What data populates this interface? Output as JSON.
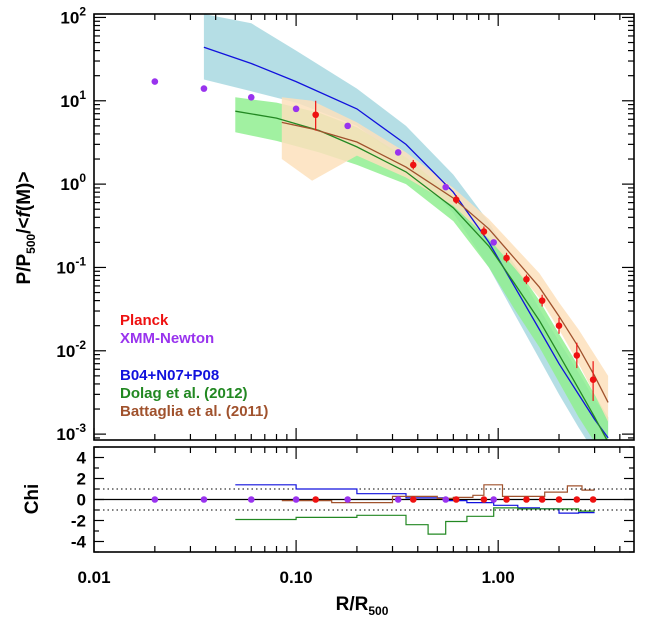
{
  "chart_data": [
    {
      "type": "line",
      "panel": "main",
      "xscale": "log",
      "yscale": "log",
      "xlim": [
        0.01,
        4.7
      ],
      "ylim": [
        0.00085,
        110
      ],
      "xlabel": "",
      "ylabel": "P/P500/<f(M)>",
      "ylabel_parts": {
        "base": "P/P",
        "sub": "500",
        "rest": "/<",
        "italic": "f",
        "tail": "(M)>"
      },
      "yticks": [
        {
          "value": 100,
          "base": "10",
          "exp": "2"
        },
        {
          "value": 10,
          "base": "10",
          "exp": "1"
        },
        {
          "value": 1,
          "base": "10",
          "exp": "0"
        },
        {
          "value": 0.1,
          "base": "10",
          "exp": "-1"
        },
        {
          "value": 0.01,
          "base": "10",
          "exp": "-2"
        },
        {
          "value": 0.001,
          "base": "10",
          "exp": "-3"
        }
      ],
      "legend": [
        {
          "label": "Planck",
          "color": "#ee1111"
        },
        {
          "label": "XMM-Newton",
          "color": "#9933ee"
        },
        {
          "label": "B04+N07+P08",
          "color": "#1111dd"
        },
        {
          "label": "Dolag et al. (2012)",
          "color": "#228822"
        },
        {
          "label": "Battaglia et al. (2011)",
          "color": "#a0522d"
        }
      ],
      "legend_position": "bottom-left",
      "series": [
        {
          "name": "Planck",
          "kind": "points",
          "color": "#ee1111",
          "x": [
            0.125,
            0.38,
            0.62,
            0.85,
            1.1,
            1.38,
            1.65,
            2.0,
            2.45,
            2.95
          ],
          "y": [
            6.8,
            1.7,
            0.65,
            0.27,
            0.13,
            0.072,
            0.04,
            0.02,
            0.0088,
            0.0045
          ],
          "err_low": [
            4.4,
            1.5,
            0.58,
            0.24,
            0.115,
            0.063,
            0.034,
            0.016,
            0.0062,
            0.0025
          ],
          "err_high": [
            10.0,
            1.95,
            0.74,
            0.31,
            0.15,
            0.082,
            0.047,
            0.025,
            0.0125,
            0.0075
          ]
        },
        {
          "name": "XMM-Newton",
          "kind": "points",
          "color": "#9933ee",
          "x": [
            0.02,
            0.035,
            0.06,
            0.1,
            0.18,
            0.32,
            0.55,
            0.95
          ],
          "y": [
            17,
            14,
            11,
            8,
            5,
            2.4,
            0.92,
            0.2
          ]
        },
        {
          "name": "B04+N07+P08",
          "kind": "line",
          "color": "#1111dd",
          "band_color": "#a8d8e0",
          "x": [
            0.035,
            0.06,
            0.1,
            0.2,
            0.35,
            0.6,
            0.9,
            1.2,
            1.6,
            2.0,
            2.5,
            3.0,
            3.5
          ],
          "y": [
            44,
            28,
            17,
            8,
            3.0,
            0.8,
            0.2,
            0.06,
            0.018,
            0.007,
            0.003,
            0.0015,
            0.0009
          ],
          "band_low": [
            18,
            13,
            9.5,
            5,
            1.8,
            0.45,
            0.1,
            0.028,
            0.008,
            0.003,
            0.0012,
            0.0006,
            0.0003
          ],
          "band_high": [
            110,
            85,
            40,
            14,
            5,
            1.3,
            0.35,
            0.11,
            0.032,
            0.013,
            0.0055,
            0.0026,
            0.0016
          ]
        },
        {
          "name": "Dolag et al. (2012)",
          "kind": "line",
          "color": "#228822",
          "band_color": "#90ee90",
          "x": [
            0.05,
            0.08,
            0.13,
            0.2,
            0.35,
            0.6,
            0.9,
            1.2,
            1.6,
            2.0,
            2.5,
            3.0,
            3.5
          ],
          "y": [
            7.5,
            6.2,
            4.4,
            2.8,
            1.4,
            0.52,
            0.18,
            0.065,
            0.023,
            0.009,
            0.0035,
            0.0016,
            0.0008
          ],
          "band_low": [
            4.2,
            3.3,
            2.4,
            1.7,
            1.0,
            0.36,
            0.1,
            0.032,
            0.011,
            0.0042,
            0.0016,
            0.0008,
            0.0004
          ],
          "band_high": [
            11,
            9.5,
            7.2,
            4.8,
            2.1,
            0.72,
            0.26,
            0.11,
            0.04,
            0.016,
            0.0065,
            0.003,
            0.0016
          ]
        },
        {
          "name": "Battaglia et al. (2011)",
          "kind": "line",
          "color": "#a0522d",
          "band_color": "#fde0bc",
          "x": [
            0.085,
            0.12,
            0.2,
            0.35,
            0.6,
            0.9,
            1.2,
            1.6,
            2.0,
            2.5,
            3.0,
            3.5
          ],
          "y": [
            5.5,
            4.6,
            3.2,
            1.6,
            0.68,
            0.29,
            0.13,
            0.058,
            0.026,
            0.011,
            0.005,
            0.0024
          ],
          "band_low": [
            2.0,
            1.1,
            2.2,
            1.2,
            0.55,
            0.22,
            0.1,
            0.043,
            0.018,
            0.007,
            0.003,
            0.0014
          ],
          "band_high": [
            11,
            10,
            5.5,
            2.4,
            0.9,
            0.38,
            0.18,
            0.085,
            0.038,
            0.018,
            0.009,
            0.005
          ]
        }
      ]
    },
    {
      "type": "line",
      "panel": "residuals",
      "xscale": "log",
      "xlim": [
        0.01,
        4.7
      ],
      "ylim": [
        -5,
        5
      ],
      "ylabel": "Chi",
      "xlabel": "R/R500",
      "xlabel_parts": {
        "base": "R/R",
        "sub": "500"
      },
      "xticks": [
        {
          "value": 0.01,
          "label": "0.01"
        },
        {
          "value": 0.1,
          "label": "0.10"
        },
        {
          "value": 1,
          "label": "1.00"
        }
      ],
      "yticks": [
        {
          "value": 4,
          "label": "4"
        },
        {
          "value": 2,
          "label": "2"
        },
        {
          "value": 0,
          "label": "0"
        },
        {
          "value": -2,
          "label": "-2"
        },
        {
          "value": -4,
          "label": "-4"
        }
      ],
      "reference_lines": [
        {
          "y": 0,
          "style": "solid"
        },
        {
          "y": 1,
          "style": "dotted"
        },
        {
          "y": -1,
          "style": "dotted"
        }
      ],
      "series": [
        {
          "name": "B04+N07+P08",
          "kind": "step",
          "color": "#1111dd",
          "edges": [
            0.05,
            0.1,
            0.2,
            0.35,
            0.55,
            0.7,
            0.95,
            1.25,
            1.6,
            2.0,
            2.5,
            3.0
          ],
          "values": [
            1.4,
            1.0,
            0.55,
            0.15,
            -0.1,
            -0.3,
            -0.55,
            -0.8,
            -0.9,
            -1.3,
            -1.25
          ]
        },
        {
          "name": "Dolag et al. (2012)",
          "kind": "step",
          "color": "#228822",
          "edges": [
            0.05,
            0.1,
            0.2,
            0.35,
            0.45,
            0.55,
            0.7,
            0.95,
            1.25,
            1.6,
            2.0,
            2.5,
            3.0
          ],
          "values": [
            -1.9,
            -1.7,
            -1.5,
            -2.4,
            -3.3,
            -2.1,
            -1.6,
            -0.8,
            -0.9,
            -0.9,
            -0.9,
            -1.1
          ]
        },
        {
          "name": "Battaglia et al. (2011)",
          "kind": "step",
          "color": "#a0522d",
          "edges": [
            0.085,
            0.15,
            0.3,
            0.5,
            0.6,
            0.75,
            0.85,
            1.05,
            1.3,
            1.7,
            2.2,
            2.6,
            3.0
          ],
          "values": [
            -0.1,
            -0.3,
            0.3,
            0.1,
            0.2,
            0.4,
            1.4,
            0.3,
            0.3,
            0.7,
            1.3,
            0.9
          ]
        },
        {
          "name": "Planck",
          "kind": "points",
          "color": "#ee1111",
          "x": [
            0.125,
            0.38,
            0.62,
            0.85,
            1.1,
            1.38,
            1.65,
            2.0,
            2.45,
            2.95
          ],
          "y": [
            0,
            0,
            0,
            0,
            0,
            0,
            0,
            0,
            0,
            0
          ]
        },
        {
          "name": "XMM-Newton",
          "kind": "points",
          "color": "#9933ee",
          "x": [
            0.02,
            0.035,
            0.06,
            0.1,
            0.18,
            0.32,
            0.55,
            0.95
          ],
          "y": [
            0,
            0,
            0,
            0,
            0,
            0,
            0,
            0
          ]
        }
      ]
    }
  ]
}
